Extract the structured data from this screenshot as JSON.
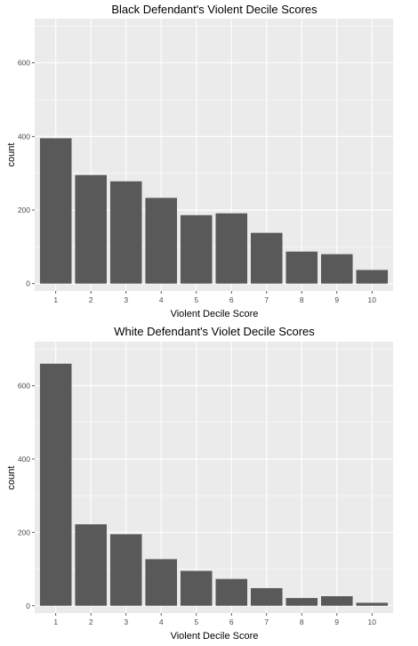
{
  "chart_data": [
    {
      "type": "bar",
      "title": "Black Defendant's Violent Decile Scores",
      "xlabel": "Violent Decile Score",
      "ylabel": "count",
      "categories": [
        "1",
        "2",
        "3",
        "4",
        "5",
        "6",
        "7",
        "8",
        "9",
        "10"
      ],
      "values": [
        395,
        295,
        278,
        233,
        186,
        191,
        138,
        87,
        80,
        37
      ],
      "yticks": [
        0,
        200,
        400,
        600
      ],
      "ylim": [
        -20,
        720
      ],
      "grid": true,
      "bar_color": "#595959",
      "panel_color": "#ebebeb",
      "grid_color": "#ffffff"
    },
    {
      "type": "bar",
      "title": "White Defendant's Violet Decile Scores",
      "xlabel": "Violent Decile Score",
      "ylabel": "count",
      "categories": [
        "1",
        "2",
        "3",
        "4",
        "5",
        "6",
        "7",
        "8",
        "9",
        "10"
      ],
      "values": [
        660,
        222,
        195,
        127,
        95,
        73,
        48,
        21,
        26,
        8
      ],
      "yticks": [
        0,
        200,
        400,
        600
      ],
      "ylim": [
        -20,
        720
      ],
      "grid": true,
      "bar_color": "#595959",
      "panel_color": "#ebebeb",
      "grid_color": "#ffffff"
    }
  ]
}
